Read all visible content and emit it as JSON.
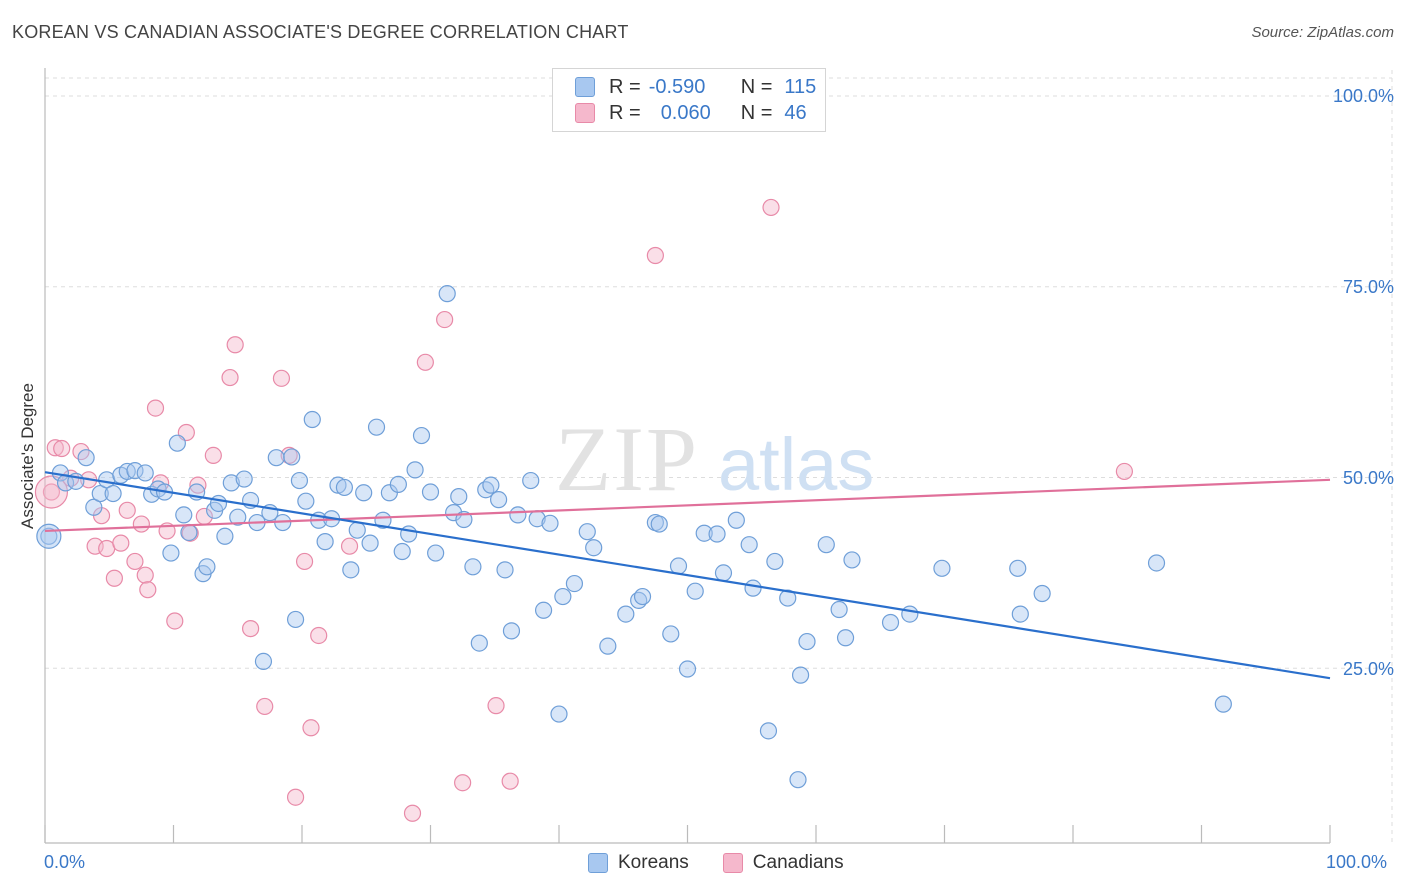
{
  "title": "KOREAN VS CANADIAN ASSOCIATE'S DEGREE CORRELATION CHART",
  "source": "Source: ZipAtlas.com",
  "watermark": {
    "zip": "ZIP",
    "atlas": "atlas"
  },
  "legend": {
    "r_label": "R =",
    "n_label": "N =",
    "rows": [
      {
        "r": "-0.590",
        "n": "115"
      },
      {
        "r": "0.060",
        "n": "46"
      }
    ]
  },
  "bottom_legend": [
    "Koreans",
    "Canadians"
  ],
  "colors": {
    "koreans_fill": "#a8c8f0",
    "koreans_stroke": "#6f9fd8",
    "koreans_line": "#2a6fcc",
    "canadians_fill": "#f5b8cc",
    "canadians_stroke": "#e88aa8",
    "canadians_line": "#e0709a",
    "tick_label": "#3a78c8"
  },
  "chart_data": {
    "type": "scatter",
    "title": "KOREAN VS CANADIAN ASSOCIATE'S DEGREE CORRELATION CHART",
    "xlabel": "",
    "ylabel": "Associate's Degree",
    "xlim": [
      0,
      100
    ],
    "ylim": [
      0,
      100
    ],
    "x_tick_labels": [
      "0.0%",
      "100.0%"
    ],
    "y_tick_labels": [
      "25.0%",
      "50.0%",
      "75.0%",
      "100.0%"
    ],
    "y_ticks": [
      25,
      50,
      75,
      100
    ],
    "grid": true,
    "legend_position": "top-center",
    "series": [
      {
        "name": "Koreans",
        "r": -0.59,
        "n": 115,
        "trend": {
          "x": [
            0,
            100
          ],
          "y": [
            48.6,
            21.6
          ]
        },
        "points": [
          [
            0.3,
            40.2
          ],
          [
            1.2,
            48.5
          ],
          [
            1.6,
            47.2
          ],
          [
            2.4,
            47.4
          ],
          [
            3.2,
            50.5
          ],
          [
            3.8,
            44.0
          ],
          [
            4.3,
            45.8
          ],
          [
            4.8,
            47.6
          ],
          [
            5.3,
            45.8
          ],
          [
            5.9,
            48.2
          ],
          [
            6.4,
            48.7
          ],
          [
            7.0,
            48.8
          ],
          [
            7.8,
            48.5
          ],
          [
            8.3,
            45.7
          ],
          [
            8.8,
            46.4
          ],
          [
            9.3,
            46.0
          ],
          [
            9.8,
            38.0
          ],
          [
            10.3,
            52.4
          ],
          [
            10.8,
            43.0
          ],
          [
            11.2,
            40.7
          ],
          [
            11.8,
            46.0
          ],
          [
            12.3,
            35.3
          ],
          [
            12.6,
            36.2
          ],
          [
            13.2,
            43.6
          ],
          [
            13.5,
            44.5
          ],
          [
            14.0,
            40.2
          ],
          [
            14.5,
            47.2
          ],
          [
            15.0,
            42.7
          ],
          [
            15.5,
            47.7
          ],
          [
            16.0,
            44.9
          ],
          [
            16.5,
            42.0
          ],
          [
            17.0,
            23.8
          ],
          [
            17.5,
            43.3
          ],
          [
            18.0,
            50.5
          ],
          [
            18.5,
            42.0
          ],
          [
            19.2,
            50.6
          ],
          [
            19.5,
            29.3
          ],
          [
            19.8,
            47.5
          ],
          [
            20.3,
            44.8
          ],
          [
            20.8,
            55.5
          ],
          [
            21.3,
            42.3
          ],
          [
            21.8,
            39.5
          ],
          [
            22.3,
            42.5
          ],
          [
            22.8,
            46.9
          ],
          [
            23.3,
            46.6
          ],
          [
            23.8,
            35.8
          ],
          [
            24.3,
            41.0
          ],
          [
            24.8,
            45.9
          ],
          [
            25.3,
            39.3
          ],
          [
            25.8,
            54.5
          ],
          [
            26.3,
            42.3
          ],
          [
            26.8,
            45.9
          ],
          [
            27.5,
            47.0
          ],
          [
            27.8,
            38.2
          ],
          [
            28.3,
            40.5
          ],
          [
            28.8,
            48.9
          ],
          [
            29.3,
            53.4
          ],
          [
            30.0,
            46.0
          ],
          [
            30.4,
            38.0
          ],
          [
            31.3,
            72.0
          ],
          [
            31.8,
            43.3
          ],
          [
            32.2,
            45.4
          ],
          [
            32.6,
            42.4
          ],
          [
            33.3,
            36.2
          ],
          [
            33.8,
            26.2
          ],
          [
            34.3,
            46.3
          ],
          [
            34.7,
            46.9
          ],
          [
            35.3,
            45.0
          ],
          [
            35.8,
            35.8
          ],
          [
            36.3,
            27.8
          ],
          [
            36.8,
            43.0
          ],
          [
            37.8,
            47.5
          ],
          [
            38.3,
            42.5
          ],
          [
            38.8,
            30.5
          ],
          [
            39.3,
            41.9
          ],
          [
            40.0,
            16.9
          ],
          [
            40.3,
            32.3
          ],
          [
            41.2,
            34.0
          ],
          [
            42.2,
            40.8
          ],
          [
            42.7,
            38.7
          ],
          [
            43.8,
            25.8
          ],
          [
            45.2,
            30.0
          ],
          [
            46.2,
            31.8
          ],
          [
            46.5,
            32.3
          ],
          [
            47.5,
            42.0
          ],
          [
            47.8,
            41.8
          ],
          [
            48.7,
            27.4
          ],
          [
            49.3,
            36.3
          ],
          [
            50.0,
            22.8
          ],
          [
            50.6,
            33.0
          ],
          [
            51.3,
            40.6
          ],
          [
            52.3,
            40.5
          ],
          [
            52.8,
            35.4
          ],
          [
            53.8,
            42.3
          ],
          [
            54.8,
            39.1
          ],
          [
            55.1,
            33.4
          ],
          [
            56.3,
            14.7
          ],
          [
            56.8,
            36.9
          ],
          [
            57.8,
            32.1
          ],
          [
            58.6,
            8.3
          ],
          [
            58.8,
            22.0
          ],
          [
            59.3,
            26.4
          ],
          [
            60.8,
            39.1
          ],
          [
            61.8,
            30.6
          ],
          [
            62.3,
            26.9
          ],
          [
            62.8,
            37.1
          ],
          [
            65.8,
            28.9
          ],
          [
            67.3,
            30.0
          ],
          [
            69.8,
            36.0
          ],
          [
            75.7,
            36.0
          ],
          [
            75.9,
            30.0
          ],
          [
            77.6,
            32.7
          ],
          [
            86.5,
            36.7
          ],
          [
            91.7,
            18.2
          ]
        ]
      },
      {
        "name": "Canadians",
        "r": 0.06,
        "n": 46,
        "trend": {
          "x": [
            0,
            100
          ],
          "y": [
            40.9,
            47.6
          ]
        },
        "points": [
          [
            0.5,
            46.0
          ],
          [
            0.8,
            51.8
          ],
          [
            1.3,
            51.7
          ],
          [
            2.0,
            47.8
          ],
          [
            2.8,
            51.3
          ],
          [
            3.4,
            47.6
          ],
          [
            3.9,
            38.9
          ],
          [
            4.4,
            42.9
          ],
          [
            4.8,
            38.6
          ],
          [
            5.4,
            34.7
          ],
          [
            5.9,
            39.3
          ],
          [
            6.4,
            43.6
          ],
          [
            7.0,
            36.9
          ],
          [
            7.5,
            41.8
          ],
          [
            7.8,
            35.1
          ],
          [
            8.0,
            33.2
          ],
          [
            8.6,
            57.0
          ],
          [
            9.0,
            47.2
          ],
          [
            9.5,
            40.9
          ],
          [
            10.1,
            29.1
          ],
          [
            11.0,
            53.8
          ],
          [
            11.3,
            40.6
          ],
          [
            11.9,
            46.9
          ],
          [
            12.4,
            42.8
          ],
          [
            13.1,
            50.8
          ],
          [
            14.4,
            61.0
          ],
          [
            14.8,
            65.3
          ],
          [
            16.0,
            28.1
          ],
          [
            17.1,
            17.9
          ],
          [
            18.4,
            60.9
          ],
          [
            19.0,
            50.8
          ],
          [
            19.5,
            6.0
          ],
          [
            20.2,
            36.9
          ],
          [
            20.7,
            15.1
          ],
          [
            21.3,
            27.2
          ],
          [
            23.7,
            38.9
          ],
          [
            28.6,
            3.9
          ],
          [
            29.6,
            63.0
          ],
          [
            31.1,
            68.6
          ],
          [
            32.5,
            7.9
          ],
          [
            35.1,
            18.0
          ],
          [
            36.2,
            8.1
          ],
          [
            47.5,
            77.0
          ],
          [
            56.5,
            83.3
          ],
          [
            84.0,
            48.7
          ]
        ]
      }
    ]
  }
}
